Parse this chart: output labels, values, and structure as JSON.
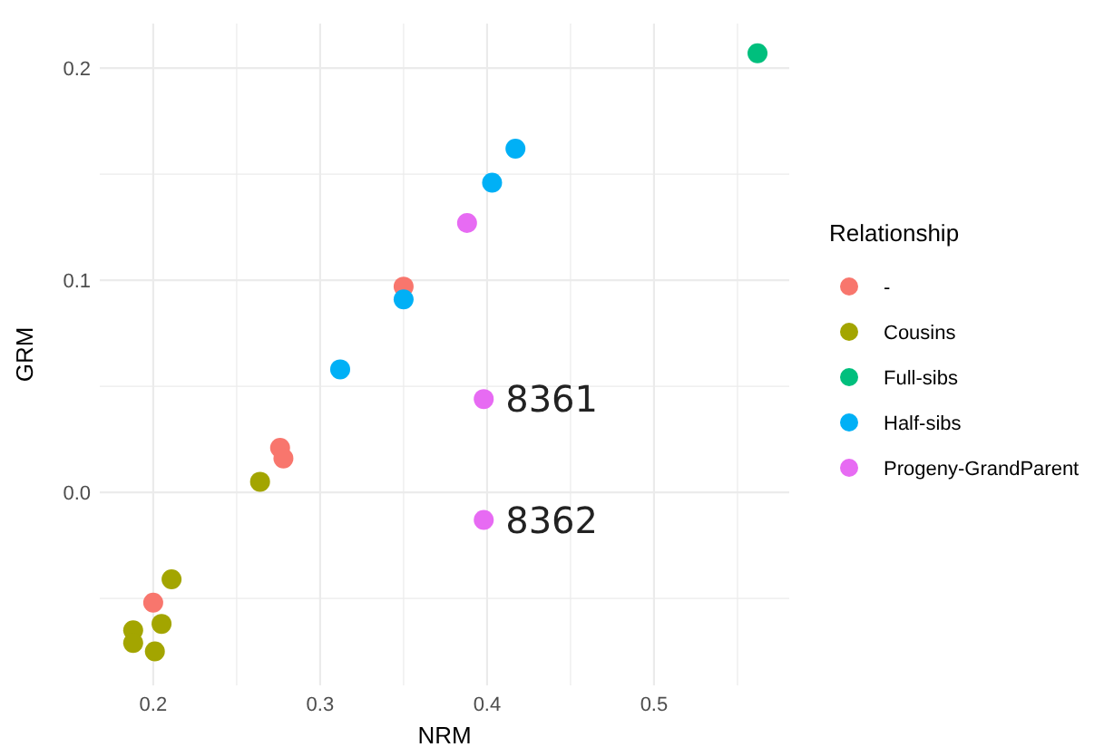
{
  "chart_data": {
    "type": "scatter",
    "xlabel": "NRM",
    "ylabel": "GRM",
    "legend_title": "Relationship",
    "legend": "right",
    "grid": true,
    "marker": "circle",
    "xlim": [
      0.168,
      0.581
    ],
    "ylim": [
      -0.091,
      0.221
    ],
    "xticks": [
      0.2,
      {
        "value": 0.25,
        "label": null
      },
      0.3,
      {
        "value": 0.35,
        "label": null
      },
      0.4,
      {
        "value": 0.45,
        "label": null
      },
      0.5,
      {
        "value": 0.55,
        "label": null
      }
    ],
    "yticks": [
      {
        "value": -0.05,
        "label": null
      },
      {
        "value": 0,
        "label": "0.0"
      },
      {
        "value": 0.05,
        "label": null
      },
      0.1,
      {
        "value": 0.15,
        "label": null
      },
      0.2
    ],
    "series": [
      {
        "name": "-",
        "color": "#f8766d",
        "x": [
          0.35,
          0.276,
          0.278,
          0.2
        ],
        "values": [
          0.097,
          0.021,
          0.016,
          -0.052
        ]
      },
      {
        "name": "Cousins",
        "color": "#a3a500",
        "x": [
          0.264,
          0.211,
          0.188,
          0.188,
          0.205,
          0.201
        ],
        "values": [
          0.005,
          -0.041,
          -0.065,
          -0.071,
          -0.062,
          -0.075
        ]
      },
      {
        "name": "Full-sibs",
        "color": "#00bf7d",
        "x": [
          0.562
        ],
        "values": [
          0.207
        ]
      },
      {
        "name": "Half-sibs",
        "color": "#00b0f6",
        "x": [
          0.417,
          0.403,
          0.35,
          0.312
        ],
        "values": [
          0.162,
          0.146,
          0.091,
          0.058
        ]
      },
      {
        "name": "Progeny-GrandParent",
        "color": "#e76bf3",
        "x": [
          0.388,
          0.398,
          0.398
        ],
        "values": [
          0.127,
          0.044,
          -0.013
        ]
      }
    ],
    "annotations": [
      {
        "text": "8361",
        "x": 0.398,
        "y": 0.044
      },
      {
        "text": "8362",
        "x": 0.398,
        "y": -0.013
      }
    ]
  }
}
